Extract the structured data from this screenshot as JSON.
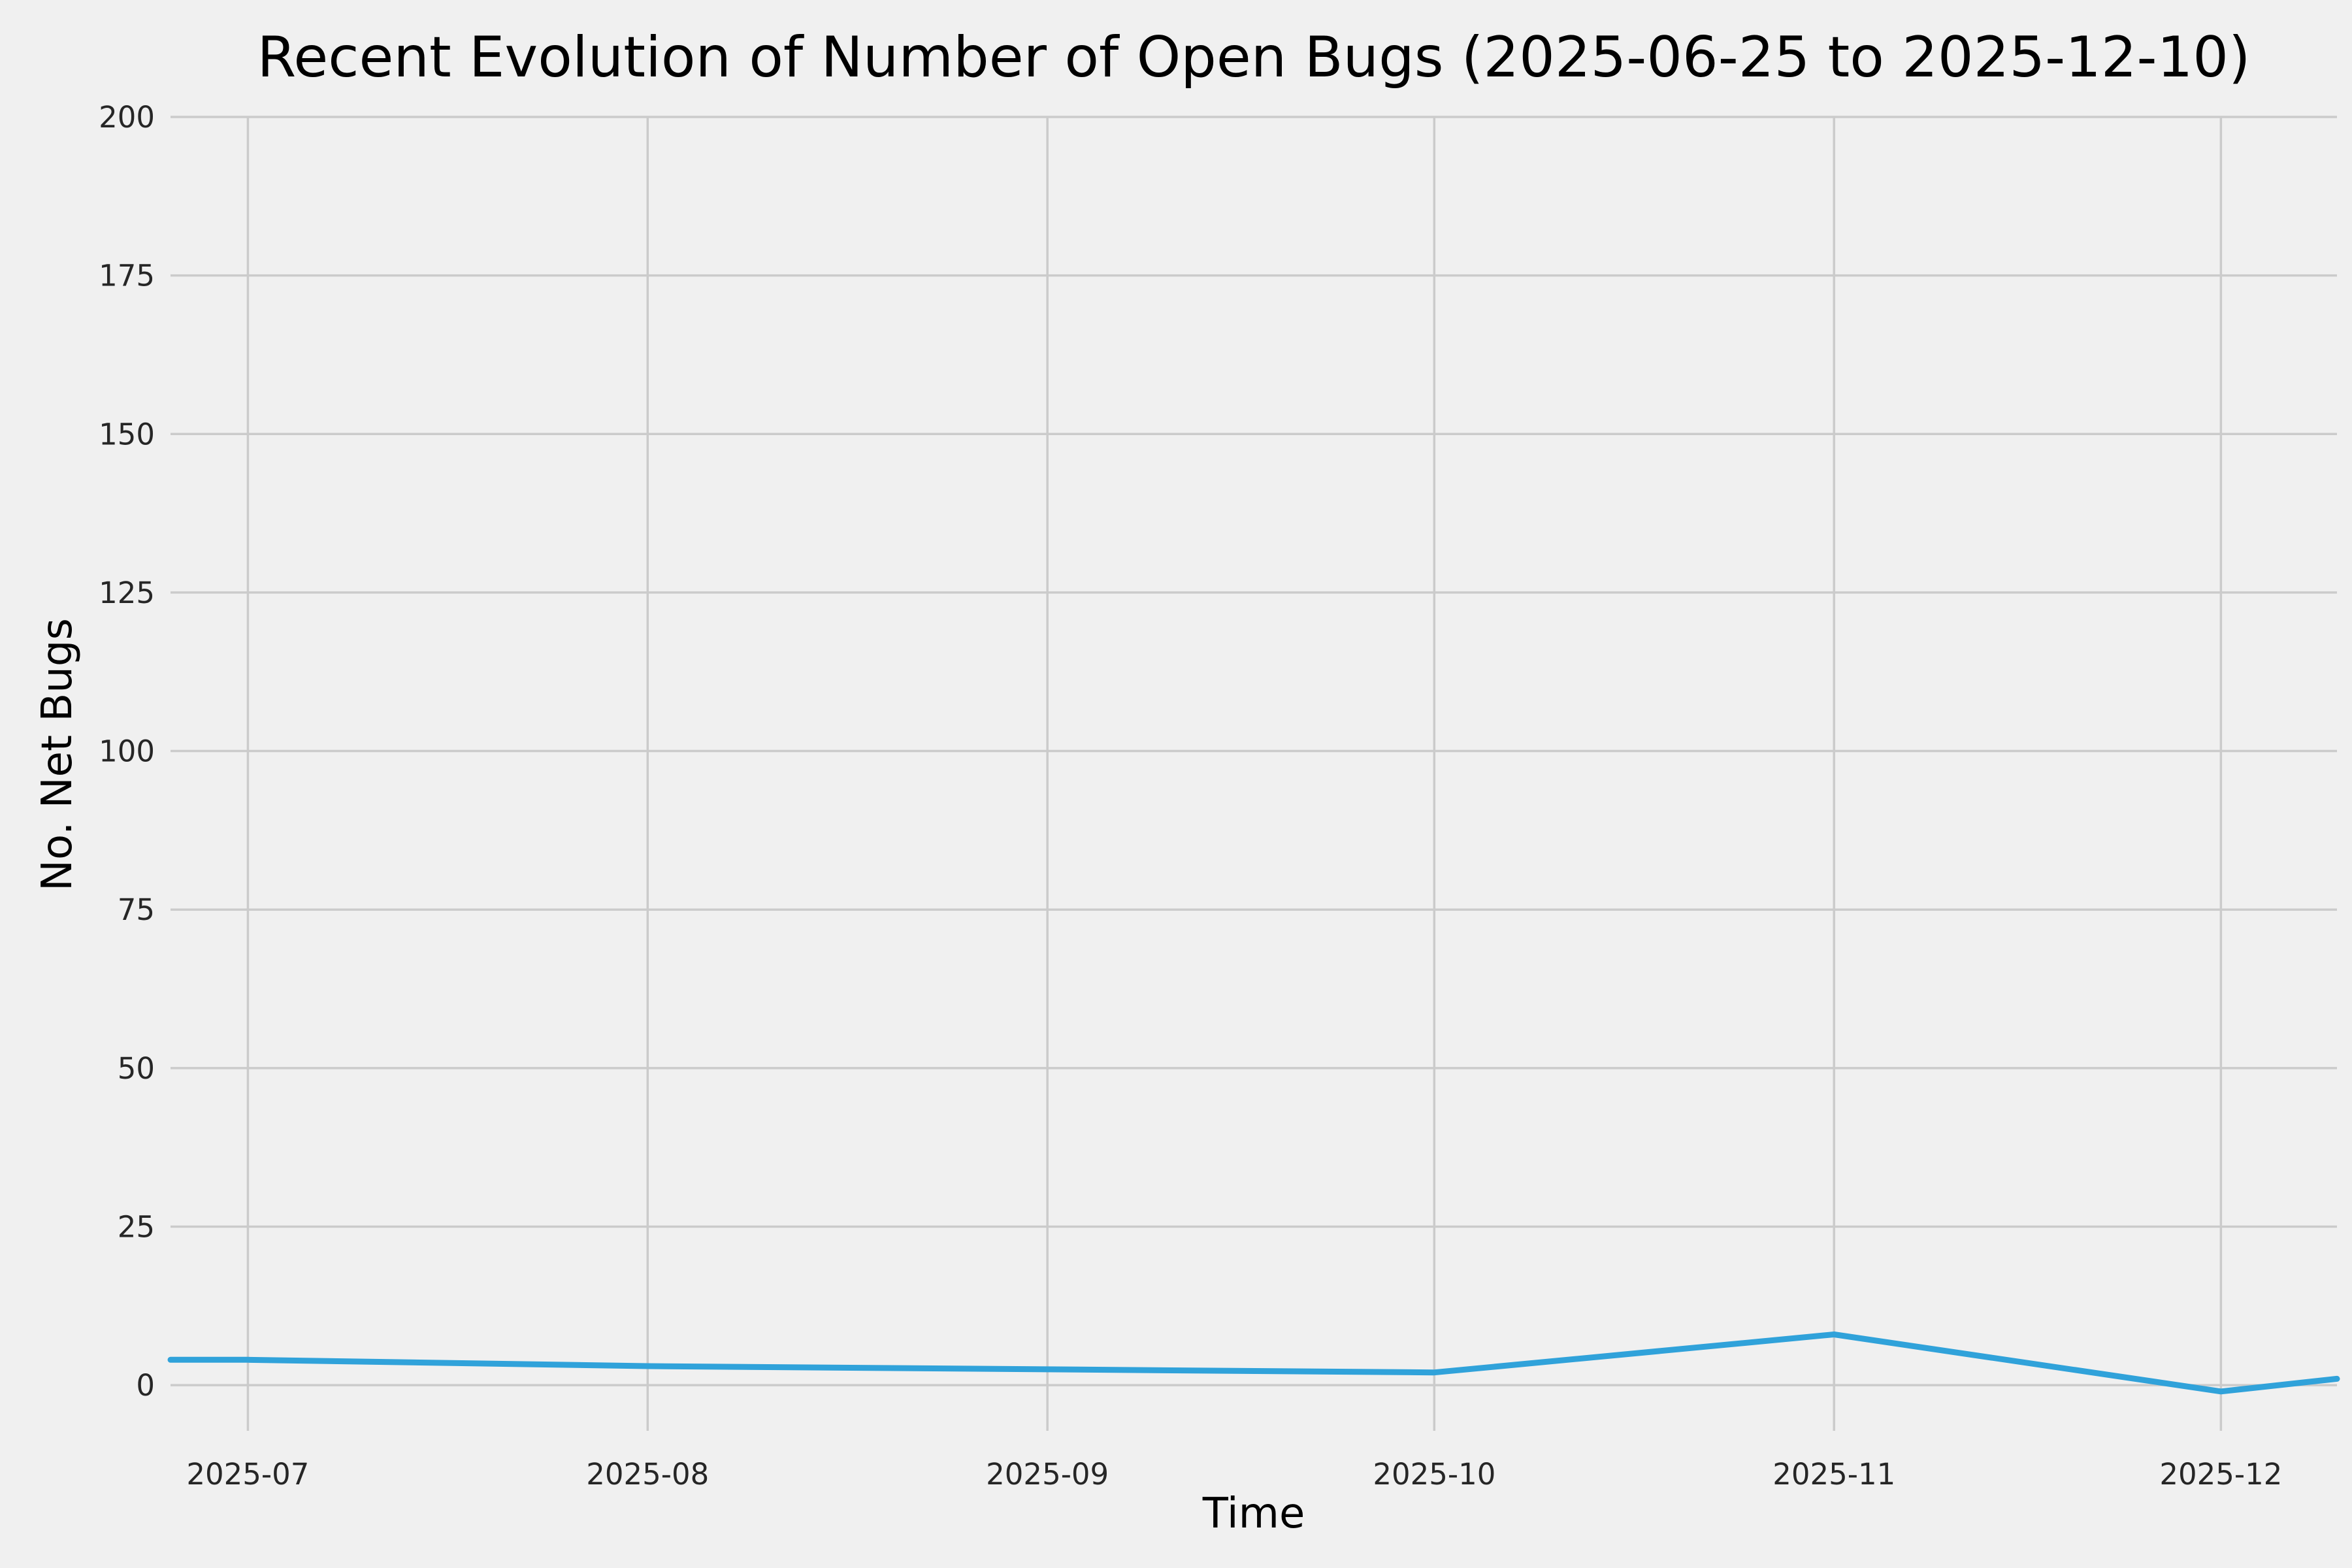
{
  "chart_data": {
    "type": "line",
    "title": "Recent Evolution of Number of Open Bugs (2025-06-25 to 2025-12-10)",
    "xlabel": "Time",
    "ylabel": "No. Net Bugs",
    "series": [
      {
        "name": "open-bugs",
        "x": [
          "2025-06-25",
          "2025-07-01",
          "2025-08-01",
          "2025-09-01",
          "2025-10-01",
          "2025-11-01",
          "2025-12-01",
          "2025-12-10"
        ],
        "y": [
          4,
          4,
          3,
          2.5,
          2,
          8,
          -1,
          1
        ]
      }
    ],
    "xlim": [
      "2025-06-25",
      "2025-12-10"
    ],
    "ylim": [
      -7.2,
      200
    ],
    "xticks": [
      {
        "label": "2025-07",
        "date": "2025-07-01"
      },
      {
        "label": "2025-08",
        "date": "2025-08-01"
      },
      {
        "label": "2025-09",
        "date": "2025-09-01"
      },
      {
        "label": "2025-10",
        "date": "2025-10-01"
      },
      {
        "label": "2025-11",
        "date": "2025-11-01"
      },
      {
        "label": "2025-12",
        "date": "2025-12-01"
      }
    ],
    "yticks": [
      0,
      25,
      50,
      75,
      100,
      125,
      150,
      175,
      200
    ],
    "grid": true,
    "legend": "none",
    "colors": {
      "background": "#f0f0f0",
      "grid": "#cbcbcb",
      "line": "#30a2da",
      "tick_text": "#262626",
      "title_text": "#000000"
    }
  }
}
